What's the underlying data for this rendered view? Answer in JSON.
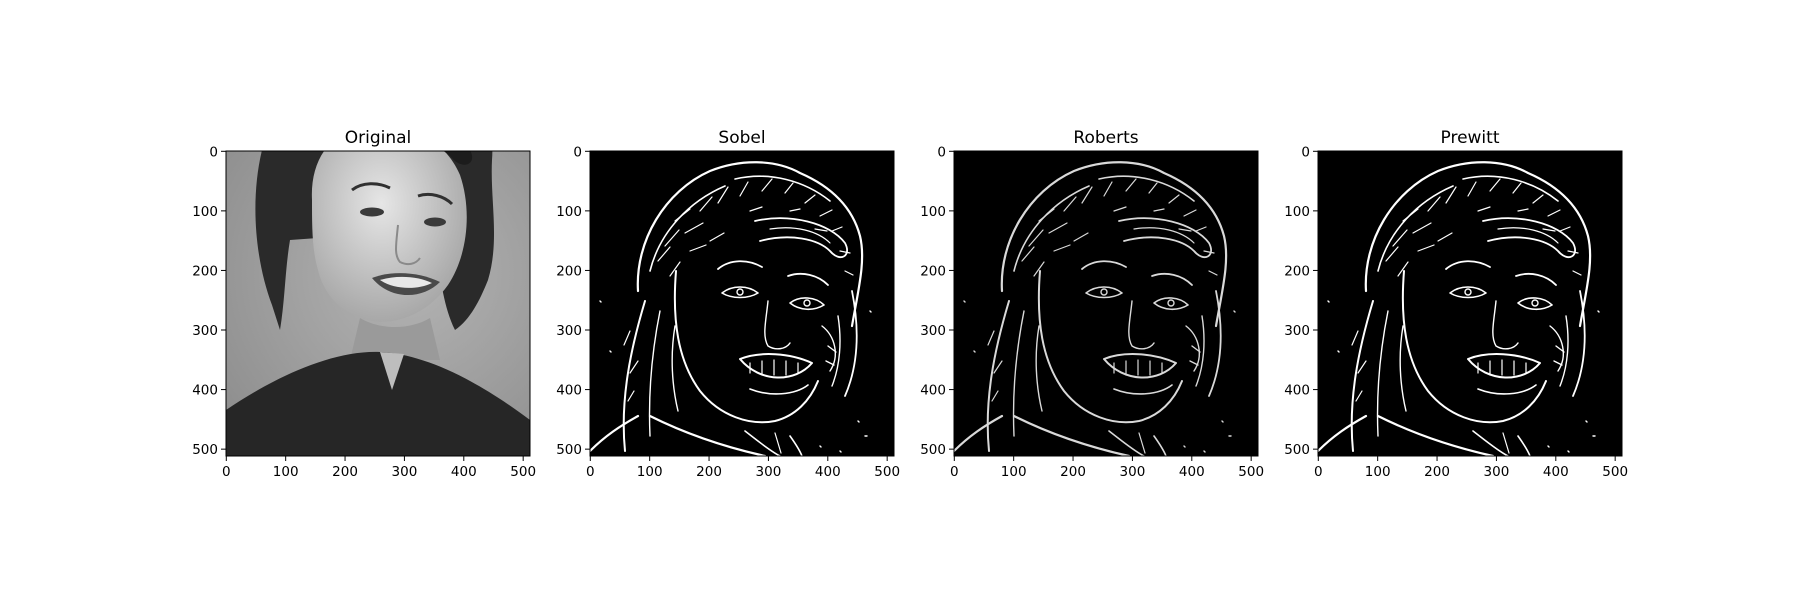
{
  "figure": {
    "background": "#ffffff"
  },
  "chart_data": [
    {
      "type": "image",
      "title": "Original",
      "colormap": "gray",
      "content": "grayscale portrait photograph",
      "xlim": [
        0,
        511
      ],
      "ylim": [
        511,
        0
      ],
      "xticks": [
        0,
        100,
        200,
        300,
        400,
        500
      ],
      "yticks": [
        0,
        100,
        200,
        300,
        400,
        500
      ]
    },
    {
      "type": "image",
      "title": "Sobel",
      "colormap": "gray",
      "content": "binary edge map",
      "xlim": [
        0,
        511
      ],
      "ylim": [
        511,
        0
      ],
      "xticks": [
        0,
        100,
        200,
        300,
        400,
        500
      ],
      "yticks": [
        0,
        100,
        200,
        300,
        400,
        500
      ]
    },
    {
      "type": "image",
      "title": "Roberts",
      "colormap": "gray",
      "content": "binary edge map",
      "xlim": [
        0,
        511
      ],
      "ylim": [
        511,
        0
      ],
      "xticks": [
        0,
        100,
        200,
        300,
        400,
        500
      ],
      "yticks": [
        0,
        100,
        200,
        300,
        400,
        500
      ]
    },
    {
      "type": "image",
      "title": "Prewitt",
      "colormap": "gray",
      "content": "binary edge map",
      "xlim": [
        0,
        511
      ],
      "ylim": [
        511,
        0
      ],
      "xticks": [
        0,
        100,
        200,
        300,
        400,
        500
      ],
      "yticks": [
        0,
        100,
        200,
        300,
        400,
        500
      ]
    }
  ]
}
